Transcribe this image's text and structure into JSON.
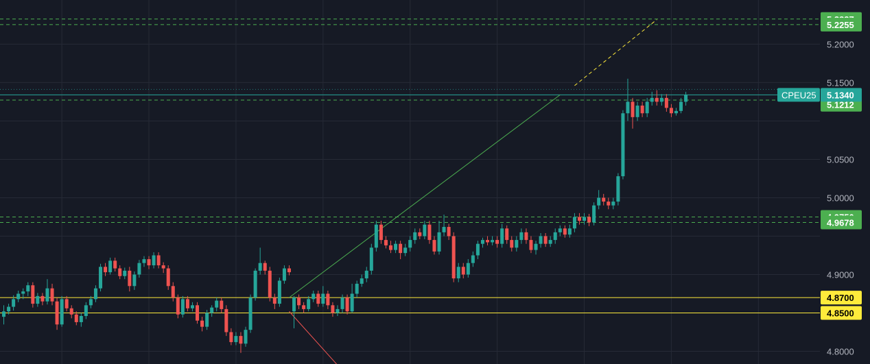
{
  "chart_data": {
    "type": "candlestick",
    "symbol": "CPEU25",
    "last_price": "5.1340",
    "colors": {
      "background": "#161a25",
      "up": "#26a69a",
      "down": "#ef5350",
      "grid": "#262a36",
      "support_green": "#4caf50",
      "support_yellow": "#ffeb3b",
      "trend_green": "#4caf50",
      "trend_red": "#ef5350",
      "trend_extension": "#ffeb3b"
    },
    "y_ticks": [
      "5.2000",
      "5.1500",
      "5.0500",
      "5.0000",
      "4.9000",
      "4.8000"
    ],
    "y_tick_values": [
      5.2,
      5.15,
      5.05,
      5.0,
      4.9,
      4.8
    ],
    "ylim": [
      4.7835,
      5.2575
    ],
    "price_lines": [
      {
        "price": 5.2327,
        "label": "5.2327",
        "style": "dashed",
        "color": "green"
      },
      {
        "price": 5.2255,
        "label": "5.2255",
        "style": "dashed",
        "color": "green"
      },
      {
        "price": 5.1272,
        "label": "5.1272",
        "style": "dashed",
        "color": "green"
      },
      {
        "price": 5.1212,
        "label": "5.1212",
        "style": "none",
        "color": "green"
      },
      {
        "price": 4.975,
        "label": "4.9750",
        "style": "dashed",
        "color": "green"
      },
      {
        "price": 4.9678,
        "label": "4.9678",
        "style": "dashed",
        "color": "green"
      },
      {
        "price": 4.87,
        "label": "4.8700",
        "style": "solid",
        "color": "yellow"
      },
      {
        "price": 4.85,
        "label": "4.8500",
        "style": "solid",
        "color": "yellow"
      }
    ],
    "trendlines": [
      {
        "name": "green-trendline",
        "from": [
          59,
          4.87
        ],
        "to": [
          115,
          5.134
        ],
        "color": "green",
        "style": "solid"
      },
      {
        "name": "yellow-trendline-extension",
        "from": [
          118,
          5.146
        ],
        "to": [
          135,
          5.232
        ],
        "color": "yellow",
        "style": "dashed"
      },
      {
        "name": "red-trendline",
        "from": [
          59,
          4.852
        ],
        "to": [
          69,
          4.782
        ],
        "color": "red",
        "style": "solid"
      }
    ],
    "candles": [
      [
        4.845,
        4.852,
        4.835,
        4.86
      ],
      [
        4.852,
        4.858,
        4.848,
        4.862
      ],
      [
        4.858,
        4.868,
        4.853,
        4.873
      ],
      [
        4.868,
        4.875,
        4.864,
        4.879
      ],
      [
        4.875,
        4.878,
        4.868,
        4.882
      ],
      [
        4.878,
        4.886,
        4.872,
        4.89
      ],
      [
        4.886,
        4.862,
        4.857,
        4.89
      ],
      [
        4.862,
        4.872,
        4.858,
        4.876
      ],
      [
        4.872,
        4.865,
        4.86,
        4.876
      ],
      [
        4.865,
        4.882,
        4.861,
        4.894
      ],
      [
        4.882,
        4.865,
        4.86,
        4.888
      ],
      [
        4.865,
        4.835,
        4.828,
        4.87
      ],
      [
        4.835,
        4.868,
        4.832,
        4.872
      ],
      [
        4.868,
        4.856,
        4.852,
        4.872
      ],
      [
        4.856,
        4.848,
        4.843,
        4.86
      ],
      [
        4.848,
        4.838,
        4.834,
        4.852
      ],
      [
        4.838,
        4.846,
        4.832,
        4.85
      ],
      [
        4.846,
        4.86,
        4.842,
        4.864
      ],
      [
        4.86,
        4.868,
        4.856,
        4.872
      ],
      [
        4.868,
        4.882,
        4.864,
        4.886
      ],
      [
        4.882,
        4.91,
        4.878,
        4.914
      ],
      [
        4.91,
        4.903,
        4.898,
        4.915
      ],
      [
        4.903,
        4.918,
        4.9,
        4.922
      ],
      [
        4.918,
        4.908,
        4.904,
        4.922
      ],
      [
        4.908,
        4.898,
        4.894,
        4.912
      ],
      [
        4.898,
        4.905,
        4.894,
        4.909
      ],
      [
        4.905,
        4.885,
        4.878,
        4.91
      ],
      [
        4.885,
        4.9,
        4.88,
        4.904
      ],
      [
        4.9,
        4.915,
        4.896,
        4.919
      ],
      [
        4.915,
        4.92,
        4.91,
        4.924
      ],
      [
        4.92,
        4.912,
        4.907,
        4.924
      ],
      [
        4.912,
        4.925,
        4.908,
        4.929
      ],
      [
        4.925,
        4.912,
        4.908,
        4.929
      ],
      [
        4.912,
        4.908,
        4.902,
        4.916
      ],
      [
        4.908,
        4.885,
        4.88,
        4.912
      ],
      [
        4.885,
        4.87,
        4.865,
        4.89
      ],
      [
        4.87,
        4.848,
        4.843,
        4.874
      ],
      [
        4.848,
        4.868,
        4.844,
        4.872
      ],
      [
        4.868,
        4.856,
        4.852,
        4.872
      ],
      [
        4.856,
        4.86,
        4.852,
        4.864
      ],
      [
        4.86,
        4.84,
        4.836,
        4.864
      ],
      [
        4.84,
        4.832,
        4.826,
        4.845
      ],
      [
        4.832,
        4.85,
        4.828,
        4.854
      ],
      [
        4.85,
        4.857,
        4.845,
        4.86
      ],
      [
        4.857,
        4.866,
        4.852,
        4.87
      ],
      [
        4.866,
        4.855,
        4.85,
        4.87
      ],
      [
        4.855,
        4.825,
        4.82,
        4.86
      ],
      [
        4.825,
        4.812,
        4.808,
        4.83
      ],
      [
        4.812,
        4.82,
        4.808,
        4.825
      ],
      [
        4.82,
        4.81,
        4.798,
        4.825
      ],
      [
        4.81,
        4.828,
        4.806,
        4.832
      ],
      [
        4.828,
        4.87,
        4.824,
        4.874
      ],
      [
        4.87,
        4.905,
        4.866,
        4.908
      ],
      [
        4.905,
        4.915,
        4.9,
        4.935
      ],
      [
        4.915,
        4.905,
        4.9,
        4.918
      ],
      [
        4.905,
        4.87,
        4.865,
        4.91
      ],
      [
        4.87,
        4.862,
        4.855,
        4.875
      ],
      [
        4.862,
        4.892,
        4.858,
        4.896
      ],
      [
        4.892,
        4.908,
        4.888,
        4.912
      ],
      [
        4.908,
        4.903,
        4.899,
        4.912
      ],
      [
        4.852,
        4.87,
        4.83,
        4.872
      ],
      [
        4.87,
        4.86,
        4.855,
        4.874
      ],
      [
        4.86,
        4.855,
        4.85,
        4.864
      ],
      [
        4.855,
        4.868,
        4.852,
        4.872
      ],
      [
        4.868,
        4.875,
        4.864,
        4.879
      ],
      [
        4.875,
        4.862,
        4.858,
        4.879
      ],
      [
        4.862,
        4.875,
        4.858,
        4.885
      ],
      [
        4.875,
        4.86,
        4.855,
        4.879
      ],
      [
        4.86,
        4.85,
        4.845,
        4.864
      ],
      [
        4.85,
        4.855,
        4.846,
        4.86
      ],
      [
        4.855,
        4.87,
        4.85,
        4.874
      ],
      [
        4.87,
        4.852,
        4.848,
        4.874
      ],
      [
        4.852,
        4.875,
        4.85,
        4.888
      ],
      [
        4.875,
        4.888,
        4.87,
        4.892
      ],
      [
        4.888,
        4.895,
        4.884,
        4.9
      ],
      [
        4.895,
        4.905,
        4.89,
        4.91
      ],
      [
        4.905,
        4.935,
        4.9,
        4.94
      ],
      [
        4.935,
        4.965,
        4.93,
        4.97
      ],
      [
        4.965,
        4.945,
        4.94,
        4.97
      ],
      [
        4.945,
        4.938,
        4.934,
        4.95
      ],
      [
        4.938,
        4.932,
        4.928,
        4.944
      ],
      [
        4.932,
        4.94,
        4.928,
        4.944
      ],
      [
        4.94,
        4.928,
        4.92,
        4.944
      ],
      [
        4.928,
        4.935,
        4.924,
        4.94
      ],
      [
        4.935,
        4.945,
        4.93,
        4.95
      ],
      [
        4.945,
        4.955,
        4.94,
        4.96
      ],
      [
        4.955,
        4.95,
        4.946,
        4.96
      ],
      [
        4.95,
        4.965,
        4.946,
        4.97
      ],
      [
        4.965,
        4.945,
        4.94,
        4.97
      ],
      [
        4.945,
        4.93,
        4.926,
        4.95
      ],
      [
        4.93,
        4.955,
        4.926,
        4.97
      ],
      [
        4.955,
        4.962,
        4.95,
        4.978
      ],
      [
        4.962,
        4.95,
        4.945,
        4.966
      ],
      [
        4.95,
        4.895,
        4.89,
        4.955
      ],
      [
        4.895,
        4.91,
        4.89,
        4.915
      ],
      [
        4.91,
        4.9,
        4.895,
        4.915
      ],
      [
        4.9,
        4.915,
        4.896,
        4.92
      ],
      [
        4.915,
        4.925,
        4.91,
        4.93
      ],
      [
        4.925,
        4.94,
        4.92,
        4.944
      ],
      [
        4.94,
        4.945,
        4.935,
        4.948
      ],
      [
        4.945,
        4.942,
        4.938,
        4.95
      ],
      [
        4.942,
        4.945,
        4.938,
        4.95
      ],
      [
        4.945,
        4.94,
        4.935,
        4.95
      ],
      [
        4.94,
        4.96,
        4.935,
        4.966
      ],
      [
        4.96,
        4.945,
        4.94,
        4.964
      ],
      [
        4.945,
        4.935,
        4.93,
        4.95
      ],
      [
        4.935,
        4.945,
        4.93,
        4.95
      ],
      [
        4.945,
        4.955,
        4.94,
        4.96
      ],
      [
        4.955,
        4.945,
        4.94,
        4.96
      ],
      [
        4.945,
        4.932,
        4.928,
        4.95
      ],
      [
        4.932,
        4.94,
        4.926,
        4.944
      ],
      [
        4.94,
        4.95,
        4.935,
        4.954
      ],
      [
        4.95,
        4.94,
        4.936,
        4.954
      ],
      [
        4.94,
        4.945,
        4.936,
        4.95
      ],
      [
        4.945,
        4.955,
        4.94,
        4.96
      ],
      [
        4.955,
        4.96,
        4.95,
        4.964
      ],
      [
        4.96,
        4.952,
        4.948,
        4.964
      ],
      [
        4.952,
        4.96,
        4.948,
        4.965
      ],
      [
        4.96,
        4.975,
        4.955,
        4.98
      ],
      [
        4.975,
        4.97,
        4.965,
        4.98
      ],
      [
        4.97,
        4.975,
        4.965,
        4.98
      ],
      [
        4.975,
        4.968,
        4.963,
        4.979
      ],
      [
        4.968,
        4.99,
        4.964,
        4.994
      ],
      [
        4.99,
        5.0,
        4.985,
        5.01
      ],
      [
        5.0,
        4.995,
        4.99,
        5.005
      ],
      [
        4.995,
        4.99,
        4.985,
        5.0
      ],
      [
        4.99,
        4.995,
        4.985,
        5.0
      ],
      [
        4.995,
        5.028,
        4.99,
        5.032
      ],
      [
        5.028,
        5.11,
        5.024,
        5.114
      ],
      [
        5.11,
        5.125,
        5.1,
        5.155
      ],
      [
        5.125,
        5.105,
        5.09,
        5.13
      ],
      [
        5.105,
        5.12,
        5.1,
        5.125
      ],
      [
        5.12,
        5.11,
        5.105,
        5.125
      ],
      [
        5.11,
        5.125,
        5.105,
        5.13
      ],
      [
        5.125,
        5.13,
        5.12,
        5.138
      ],
      [
        5.13,
        5.125,
        5.12,
        5.14
      ],
      [
        5.125,
        5.13,
        5.12,
        5.135
      ],
      [
        5.13,
        5.117,
        5.112,
        5.135
      ],
      [
        5.117,
        5.11,
        5.105,
        5.122
      ],
      [
        5.11,
        5.113,
        5.107,
        5.117
      ],
      [
        5.113,
        5.125,
        5.11,
        5.13
      ],
      [
        5.125,
        5.134,
        5.12,
        5.138
      ]
    ]
  }
}
